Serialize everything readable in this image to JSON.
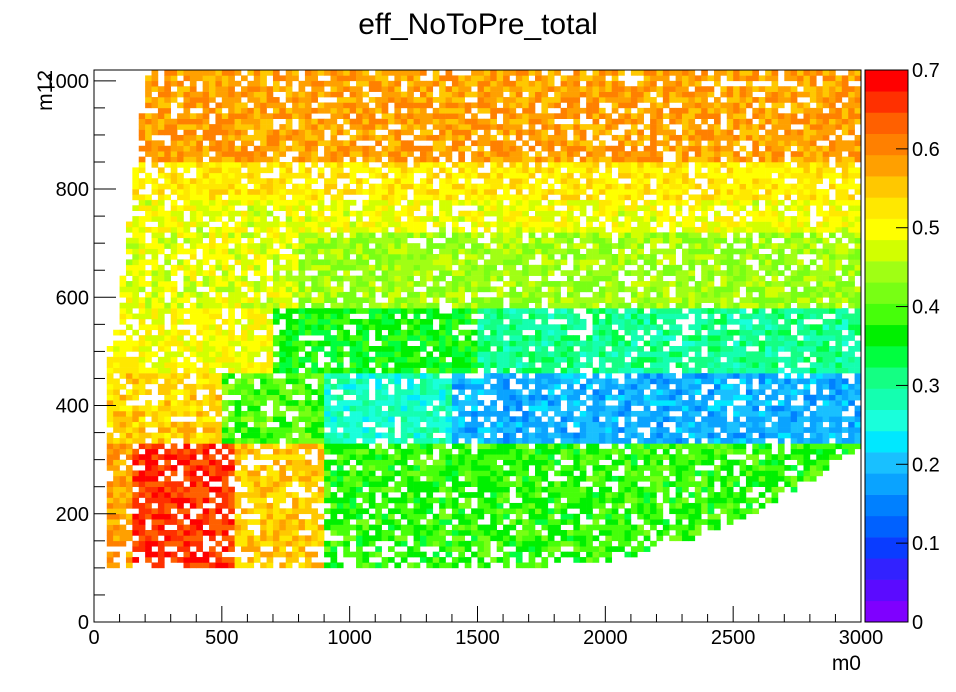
{
  "chart_data": {
    "type": "heatmap",
    "title": "eff_NoToPre_total",
    "xlabel": "m0",
    "ylabel": "m12",
    "xlim": [
      0,
      3000
    ],
    "ylim": [
      0,
      1020
    ],
    "x_ticks": [
      0,
      500,
      1000,
      1500,
      2000,
      2500,
      3000
    ],
    "y_ticks": [
      0,
      200,
      400,
      600,
      800,
      1000
    ],
    "z_range": [
      0,
      0.7
    ],
    "z_ticks": [
      0,
      0.1,
      0.2,
      0.3,
      0.4,
      0.5,
      0.6,
      0.7
    ],
    "bin_width_x": 25,
    "bin_width_y": 10,
    "filled_region": {
      "x_min": 50,
      "y_min": 100,
      "y_max": 1020
    },
    "approx_values": [
      {
        "region": "low m0 (200-600), m12 300-200",
        "z": 0.65
      },
      {
        "region": "low m0, m12 350-550",
        "z": 0.55
      },
      {
        "region": "all m0, m12 900-1000",
        "z": 0.58
      },
      {
        "region": "all m0, m12 750-850",
        "z": 0.52
      },
      {
        "region": "high m0, m12 600-700",
        "z": 0.42
      },
      {
        "region": "high m0, m12 450-550",
        "z": 0.28
      },
      {
        "region": "m0 1500-2900, m12 350-450",
        "z": 0.2
      },
      {
        "region": "m0 900-2000, m12 150-300",
        "z": 0.38
      }
    ],
    "colorbar": {
      "steps": [
        "#7f00ff",
        "#5b0bff",
        "#3222ff",
        "#0a3cff",
        "#0061ff",
        "#0080ff",
        "#0aa3ff",
        "#19c0ff",
        "#00e8ff",
        "#19ffdb",
        "#14ffb0",
        "#14ff83",
        "#00ff3f",
        "#00f000",
        "#46ff0a",
        "#78ff14",
        "#a0ff14",
        "#d2ff00",
        "#ffff00",
        "#ffe800",
        "#ffc800",
        "#ffa000",
        "#ff8000",
        "#ff6000",
        "#ff3000",
        "#ff0000"
      ]
    },
    "grid": false,
    "legend": "colorbar right"
  }
}
